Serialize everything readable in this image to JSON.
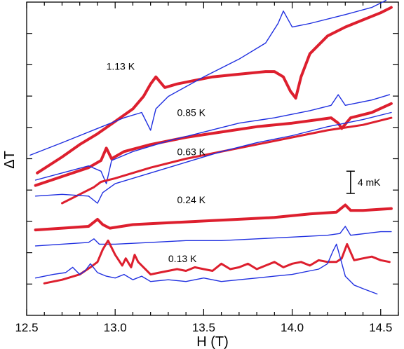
{
  "chart_data": {
    "type": "line",
    "title": "",
    "xlabel": "H (T)",
    "ylabel": "ΔT",
    "xlim": [
      12.5,
      14.6
    ],
    "ylim": [
      -1.4,
      16.2
    ],
    "xticks": [
      "12.5",
      "13.0",
      "13.5",
      "14.0",
      "14.5"
    ],
    "grid": false,
    "legend": "none",
    "colors": {
      "red": "#dd1f2e",
      "blue": "#1f2fe0"
    },
    "scale_bar": {
      "label": "4 mK",
      "value": 1.25
    },
    "annotations": [
      {
        "text": "1.13 K",
        "x": 12.95,
        "y": 12.4
      },
      {
        "text": "0.85 K",
        "x": 13.35,
        "y": 9.8
      },
      {
        "text": "0.63 K",
        "x": 13.35,
        "y": 7.6
      },
      {
        "text": "0.24 K",
        "x": 13.35,
        "y": 4.9
      },
      {
        "text": "0.13 K",
        "x": 13.3,
        "y": 1.6
      }
    ],
    "series": [
      {
        "color": "red",
        "width": 4,
        "x": [
          12.56,
          12.7,
          12.8,
          12.9,
          13.0,
          13.1,
          13.16,
          13.2,
          13.23,
          13.28,
          13.35,
          13.45,
          13.55,
          13.65,
          13.75,
          13.85,
          13.9,
          13.95,
          13.99,
          14.02,
          14.05,
          14.1,
          14.2,
          14.3,
          14.4,
          14.5,
          14.56
        ],
        "y": [
          6.6,
          7.5,
          8.2,
          8.8,
          9.5,
          10.2,
          10.9,
          11.6,
          12.0,
          11.4,
          11.6,
          11.8,
          12.0,
          12.1,
          12.2,
          12.3,
          12.3,
          12.0,
          11.2,
          10.8,
          12.0,
          13.3,
          14.3,
          14.8,
          15.2,
          15.6,
          15.9
        ]
      },
      {
        "color": "blue",
        "width": 1.4,
        "x": [
          12.52,
          12.7,
          12.9,
          13.05,
          13.15,
          13.2,
          13.23,
          13.3,
          13.5,
          13.7,
          13.85,
          13.92,
          13.95,
          14.0,
          14.1,
          14.3,
          14.45,
          14.53
        ],
        "y": [
          7.6,
          8.3,
          9.1,
          9.7,
          10.0,
          9.0,
          10.2,
          10.9,
          12.0,
          13.0,
          13.9,
          15.0,
          15.7,
          14.8,
          15.0,
          15.5,
          15.9,
          16.3
        ]
      },
      {
        "color": "red",
        "width": 4,
        "x": [
          12.55,
          12.7,
          12.85,
          12.92,
          12.95,
          12.98,
          13.05,
          13.2,
          13.4,
          13.6,
          13.8,
          14.0,
          14.15,
          14.22,
          14.26,
          14.28,
          14.33,
          14.45,
          14.56
        ],
        "y": [
          5.9,
          6.4,
          6.9,
          7.3,
          8.0,
          7.4,
          7.8,
          8.2,
          8.6,
          8.9,
          9.2,
          9.4,
          9.6,
          9.7,
          9.4,
          9.1,
          9.7,
          10.0,
          10.5
        ]
      },
      {
        "color": "blue",
        "width": 1.4,
        "x": [
          12.55,
          12.7,
          12.85,
          12.92,
          12.95,
          12.98,
          13.1,
          13.3,
          13.5,
          13.7,
          13.9,
          14.1,
          14.22,
          14.26,
          14.3,
          14.45,
          14.55
        ],
        "y": [
          6.2,
          6.6,
          7.0,
          6.7,
          6.0,
          7.3,
          7.8,
          8.4,
          8.9,
          9.4,
          9.7,
          10.1,
          10.4,
          11.0,
          10.4,
          10.7,
          11.0
        ]
      },
      {
        "color": "red",
        "width": 3,
        "x": [
          12.7,
          12.8,
          12.88,
          12.92,
          13.0,
          13.2,
          13.4,
          13.6,
          13.8,
          14.0,
          14.2,
          14.4,
          14.56
        ],
        "y": [
          4.9,
          5.4,
          5.8,
          6.1,
          6.3,
          6.9,
          7.4,
          7.8,
          8.2,
          8.6,
          9.0,
          9.3,
          9.7
        ]
      },
      {
        "color": "blue",
        "width": 1.4,
        "x": [
          12.55,
          12.7,
          12.85,
          12.9,
          12.93,
          13.0,
          13.2,
          13.4,
          13.6,
          13.8,
          14.0,
          14.2,
          14.4,
          14.56
        ],
        "y": [
          5.3,
          5.4,
          5.3,
          4.9,
          5.5,
          6.0,
          6.6,
          7.2,
          7.8,
          8.3,
          8.7,
          9.2,
          9.6,
          10.0
        ]
      },
      {
        "color": "red",
        "width": 4,
        "x": [
          12.55,
          12.7,
          12.85,
          12.9,
          12.93,
          12.97,
          13.1,
          13.3,
          13.5,
          13.7,
          13.9,
          14.1,
          14.25,
          14.3,
          14.33,
          14.4,
          14.56
        ],
        "y": [
          3.4,
          3.5,
          3.6,
          4.0,
          3.7,
          3.5,
          3.7,
          3.8,
          3.9,
          4.0,
          4.1,
          4.3,
          4.4,
          4.8,
          4.5,
          4.5,
          4.6
        ]
      },
      {
        "color": "blue",
        "width": 1.4,
        "x": [
          12.55,
          12.7,
          12.85,
          12.88,
          12.91,
          13.0,
          13.2,
          13.4,
          13.6,
          13.8,
          14.0,
          14.2,
          14.27,
          14.3,
          14.33,
          14.5,
          14.56
        ],
        "y": [
          2.5,
          2.6,
          2.7,
          2.9,
          2.6,
          2.6,
          2.7,
          2.8,
          2.8,
          2.9,
          3.0,
          3.1,
          3.2,
          3.6,
          3.1,
          3.3,
          3.3
        ]
      },
      {
        "color": "red",
        "width": 3,
        "x": [
          12.6,
          12.7,
          12.8,
          12.86,
          12.9,
          12.93,
          12.96,
          13.0,
          13.04,
          13.06,
          13.09,
          13.11,
          13.13,
          13.16,
          13.2,
          13.25,
          13.3,
          13.35,
          13.4,
          13.45,
          13.5,
          13.55,
          13.6,
          13.65,
          13.7,
          13.75,
          13.8,
          13.85,
          13.9,
          13.95,
          14.0,
          14.05,
          14.1,
          14.15,
          14.2,
          14.25,
          14.28,
          14.31,
          14.35,
          14.4,
          14.45,
          14.5,
          14.55
        ],
        "y": [
          0.4,
          0.6,
          0.9,
          1.3,
          1.6,
          2.3,
          2.8,
          2.0,
          1.4,
          1.8,
          1.3,
          2.0,
          1.6,
          1.3,
          0.9,
          1.0,
          1.1,
          1.2,
          1.1,
          1.3,
          1.2,
          1.1,
          1.5,
          1.2,
          1.3,
          1.5,
          1.2,
          1.4,
          1.6,
          1.3,
          1.5,
          1.6,
          1.4,
          1.7,
          1.6,
          1.6,
          1.8,
          2.6,
          1.7,
          1.8,
          1.9,
          1.7,
          1.6
        ]
      },
      {
        "color": "blue",
        "width": 1.4,
        "x": [
          12.55,
          12.65,
          12.72,
          12.76,
          12.8,
          12.83,
          12.86,
          12.9,
          12.95,
          13.0,
          13.05,
          13.1,
          13.15,
          13.2,
          13.3,
          13.4,
          13.5,
          13.6,
          13.7,
          13.8,
          13.9,
          14.0,
          14.1,
          14.15,
          14.2,
          14.23,
          14.25,
          14.27,
          14.3,
          14.35,
          14.4,
          14.48
        ],
        "y": [
          0.7,
          0.9,
          1.0,
          1.3,
          0.9,
          1.1,
          1.5,
          1.0,
          0.8,
          0.7,
          0.9,
          0.6,
          0.8,
          0.5,
          0.6,
          0.5,
          0.7,
          0.5,
          0.6,
          0.7,
          0.8,
          0.9,
          1.1,
          1.2,
          1.5,
          2.2,
          2.6,
          1.9,
          0.8,
          0.3,
          0.1,
          -0.2
        ]
      }
    ]
  }
}
